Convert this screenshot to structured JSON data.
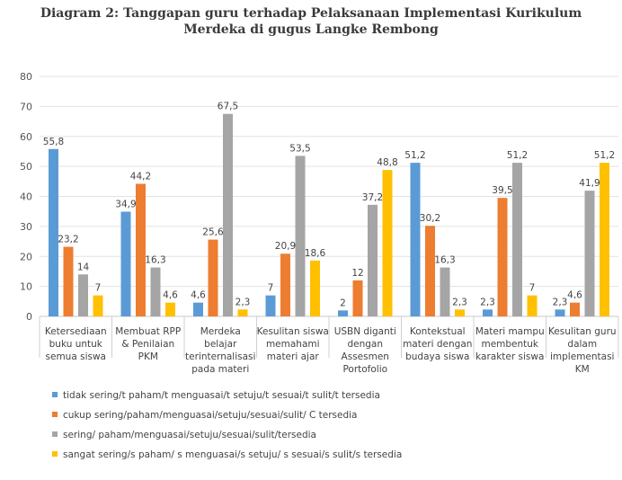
{
  "title_line1": "Diagram 2: Tanggapan guru terhadap Pelaksanaan Implementasi Kurikulum",
  "title_line2": "Merdeka di gugus Langke Rembong",
  "chart_data": {
    "type": "bar",
    "categories": [
      [
        "Ketersediaan",
        "buku untuk",
        "semua siswa"
      ],
      [
        "Membuat RPP",
        "& Penilaian",
        "PKM"
      ],
      [
        "Merdeka",
        "belajar",
        "terinternalisasi",
        "pada materi"
      ],
      [
        "Kesulitan siswa",
        "memahami",
        "materi ajar"
      ],
      [
        "USBN diganti",
        "dengan",
        "Assesmen",
        "Portofolio"
      ],
      [
        "Kontekstual",
        "materi dengan",
        "budaya siswa"
      ],
      [
        "Materi mampu",
        "membentuk",
        "karakter siswa"
      ],
      [
        "Kesulitan guru",
        "dalam",
        "implementasi",
        "KM"
      ]
    ],
    "series": [
      {
        "name": "tidak sering/t paham/t menguasai/t setuju/t sesuai/t sulit/t tersedia",
        "color": "#5b9bd5",
        "values": [
          55.8,
          34.9,
          4.6,
          7,
          2,
          51.2,
          2.3,
          2.3
        ],
        "labels": [
          "55,8",
          "34,9",
          "4,6",
          "7",
          "2",
          "51,2",
          "2,3",
          "2,3"
        ]
      },
      {
        "name": "cukup sering/paham/menguasai/setuju/sesuai/sulit/ C tersedia",
        "color": "#ed7d31",
        "values": [
          23.2,
          44.2,
          25.6,
          20.9,
          12,
          30.2,
          39.5,
          4.6
        ],
        "labels": [
          "23,2",
          "44,2",
          "25,6",
          "20,9",
          "12",
          "30,2",
          "39,5",
          "4,6"
        ]
      },
      {
        "name": "sering/ paham/menguasai/setuju/sesuai/sulit/tersedia",
        "color": "#a5a5a5",
        "values": [
          14,
          16.3,
          67.5,
          53.5,
          37.2,
          16.3,
          51.2,
          41.9
        ],
        "labels": [
          "14",
          "16,3",
          "67,5",
          "53,5",
          "37,2",
          "16,3",
          "51,2",
          "41,9"
        ]
      },
      {
        "name": "sangat sering/s paham/ s menguasai/s setuju/ s sesuai/s sulit/s tersedia",
        "color": "#ffc000",
        "values": [
          7,
          4.6,
          2.3,
          18.6,
          48.8,
          2.3,
          7,
          51.2
        ],
        "labels": [
          "7",
          "4,6",
          "2,3",
          "18,6",
          "48,8",
          "2,3",
          "7",
          "51,2"
        ]
      }
    ],
    "yticks": [
      "0",
      "10",
      "20",
      "30",
      "40",
      "50",
      "60",
      "70",
      "80"
    ],
    "ylim": [
      0,
      80
    ],
    "grid": true,
    "legend_placement": "bottom-left"
  }
}
